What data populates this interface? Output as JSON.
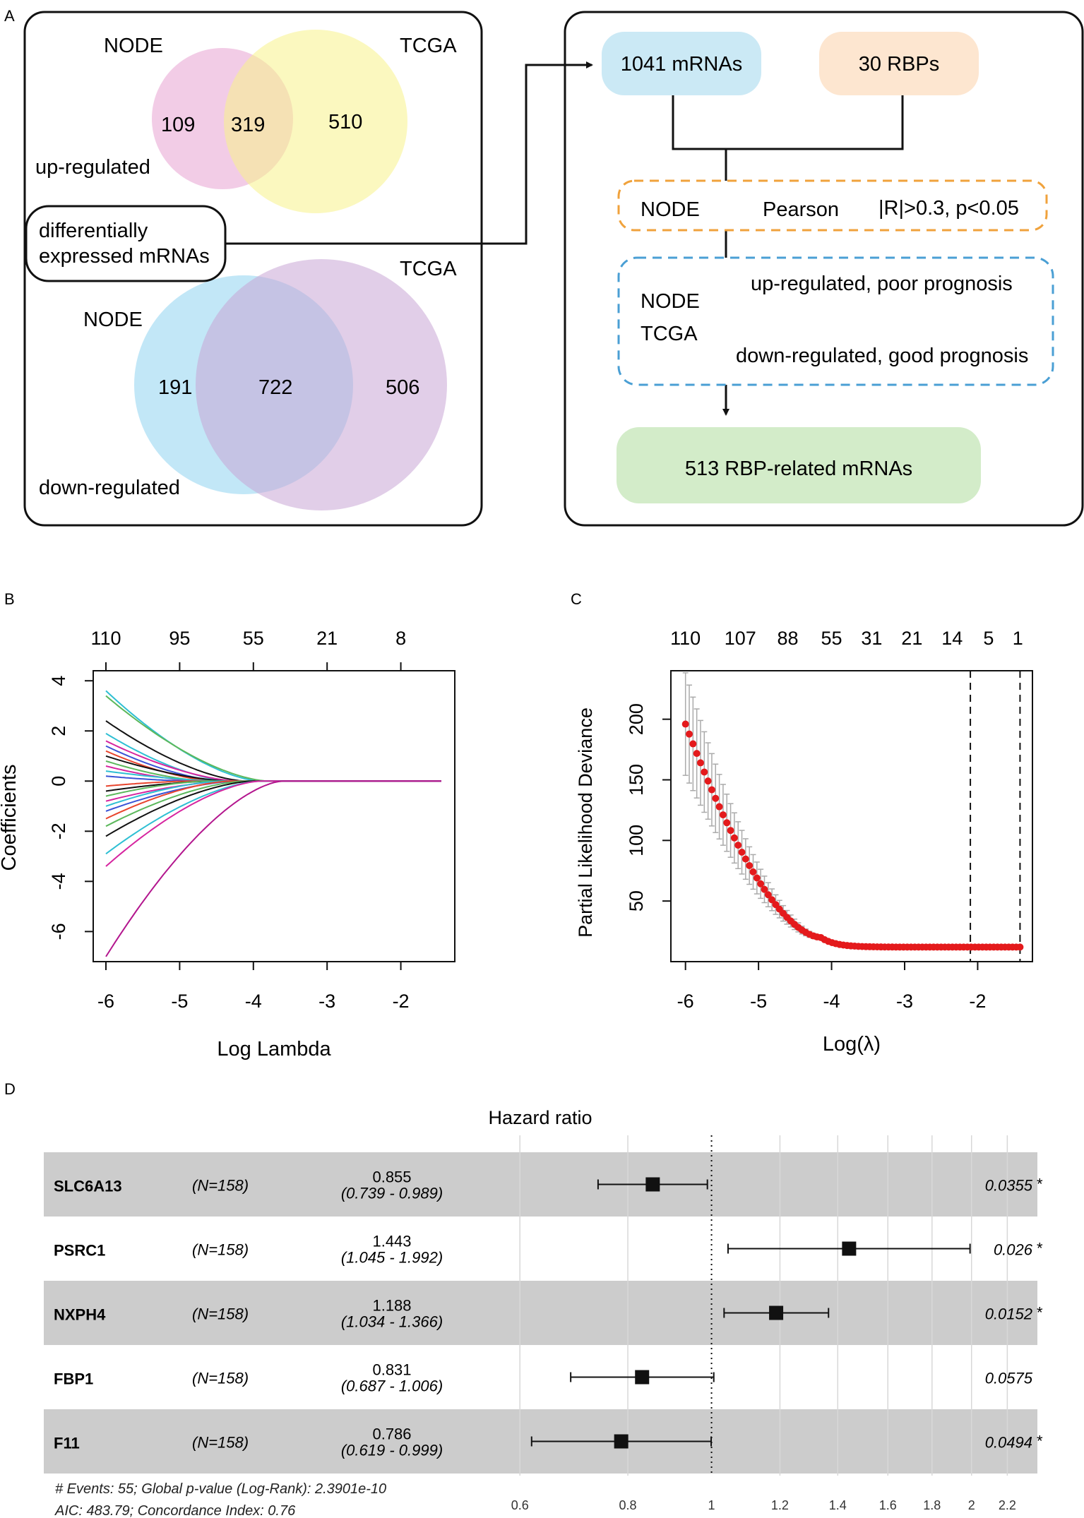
{
  "panel_letters": [
    "A",
    "B",
    "C",
    "D"
  ],
  "panel_a": {
    "up": {
      "left_label": "NODE",
      "right_label": "TCGA",
      "left_only": "109",
      "overlap": "319",
      "right_only": "510",
      "direction": "up-regulated",
      "colors": {
        "left": "#e8a3d1",
        "right": "#f7f28a"
      }
    },
    "callout": {
      "line1": "differentially",
      "line2": "expressed mRNAs"
    },
    "down": {
      "left_label": "NODE",
      "right_label": "TCGA",
      "left_only": "191",
      "overlap": "722",
      "right_only": "506",
      "direction": "down-regulated",
      "colors": {
        "left": "#8fd3f0",
        "right": "#c9a6d6"
      }
    },
    "flow": {
      "mrnas_box": "1041 mRNAs",
      "rbps_box": "30 RBPs",
      "pearson_row": {
        "cohort": "NODE",
        "method": "Pearson",
        "criteria": "|R|>0.3, p<0.05"
      },
      "prognosis_box": {
        "cohort1": "NODE",
        "cohort2": "TCGA",
        "rule1": "up-regulated, poor prognosis",
        "rule2": "down-regulated, good prognosis"
      },
      "result_box": "513 RBP-related mRNAs",
      "colors": {
        "mrnas": "#cbe9f5",
        "rbps": "#fde6d0",
        "result": "#d3ecc9",
        "pearson_border": "#f0a23c",
        "prognosis_border": "#4a9fd4"
      }
    }
  },
  "chart_data": [
    {
      "id": "B",
      "type": "line",
      "title": "",
      "xlabel": "Log Lambda",
      "ylabel": "Coefficients",
      "xlim": [
        -6.0,
        -1.45
      ],
      "ylim": [
        -7.2,
        4.4
      ],
      "x_ticks": [
        -6,
        -5,
        -4,
        -3,
        -2
      ],
      "y_ticks": [
        4,
        2,
        0,
        -2,
        -4,
        -6
      ],
      "top_axis": {
        "positions": [
          -6,
          -5,
          -4,
          -3,
          -2
        ],
        "labels": [
          "110",
          "95",
          "55",
          "21",
          "8"
        ]
      },
      "x_end": -1.45,
      "series": [
        {
          "name": "c1",
          "start": 3.6,
          "zero_at": -3.9,
          "color": "#2ebfd3"
        },
        {
          "name": "c2",
          "start": 3.4,
          "zero_at": -3.8,
          "color": "#5cb85c"
        },
        {
          "name": "c3",
          "start": 2.4,
          "zero_at": -4.1,
          "color": "#111111"
        },
        {
          "name": "c4",
          "start": 1.9,
          "zero_at": -4.3,
          "color": "#2ebfd3"
        },
        {
          "name": "c5",
          "start": 1.6,
          "zero_at": -4.2,
          "color": "#d6249f"
        },
        {
          "name": "c6",
          "start": 1.4,
          "zero_at": -4.4,
          "color": "#3a53d6"
        },
        {
          "name": "c7",
          "start": 1.2,
          "zero_at": -4.5,
          "color": "#e8452e"
        },
        {
          "name": "c8",
          "start": 1.0,
          "zero_at": -4.3,
          "color": "#111111"
        },
        {
          "name": "c9",
          "start": 0.8,
          "zero_at": -4.6,
          "color": "#5cb85c"
        },
        {
          "name": "c10",
          "start": 0.6,
          "zero_at": -4.7,
          "color": "#d6249f"
        },
        {
          "name": "c11",
          "start": 0.4,
          "zero_at": -4.4,
          "color": "#2ebfd3"
        },
        {
          "name": "c12",
          "start": 0.2,
          "zero_at": -4.8,
          "color": "#3a53d6"
        },
        {
          "name": "c13",
          "start": -0.2,
          "zero_at": -4.8,
          "color": "#e8452e"
        },
        {
          "name": "c14",
          "start": -0.4,
          "zero_at": -4.5,
          "color": "#111111"
        },
        {
          "name": "c15",
          "start": -0.6,
          "zero_at": -4.6,
          "color": "#5cb85c"
        },
        {
          "name": "c16",
          "start": -0.8,
          "zero_at": -4.3,
          "color": "#d6249f"
        },
        {
          "name": "c17",
          "start": -1.0,
          "zero_at": -4.4,
          "color": "#2ebfd3"
        },
        {
          "name": "c18",
          "start": -1.2,
          "zero_at": -4.2,
          "color": "#3a53d6"
        },
        {
          "name": "c19",
          "start": -1.5,
          "zero_at": -4.3,
          "color": "#e8452e"
        },
        {
          "name": "c20",
          "start": -1.8,
          "zero_at": -4.1,
          "color": "#5cb85c"
        },
        {
          "name": "c21",
          "start": -2.2,
          "zero_at": -4.0,
          "color": "#111111"
        },
        {
          "name": "c22",
          "start": -2.9,
          "zero_at": -3.9,
          "color": "#2ebfd3"
        },
        {
          "name": "c23",
          "start": -3.4,
          "zero_at": -3.9,
          "color": "#d6249f"
        },
        {
          "name": "c24",
          "start": -7.0,
          "zero_at": -3.6,
          "color": "#b3168e"
        }
      ]
    },
    {
      "id": "C",
      "type": "scatter",
      "title": "",
      "xlabel": "Log(λ)",
      "ylabel": "Partial Likelihood Deviance",
      "xlim": [
        -6.2,
        -1.25
      ],
      "ylim": [
        0,
        240
      ],
      "x_ticks": [
        -6,
        -5,
        -4,
        -3,
        -2
      ],
      "y_ticks": [
        50,
        100,
        150,
        200
      ],
      "top_axis": {
        "positions": [
          -6,
          -5.25,
          -4.6,
          -4.0,
          -3.45,
          -2.9,
          -2.35,
          -1.85,
          -1.45
        ],
        "labels": [
          "110",
          "107",
          "88",
          "55",
          "31",
          "21",
          "14",
          "5",
          "1"
        ]
      },
      "vlines": [
        -2.1,
        -1.42
      ],
      "points": {
        "x_start": -6.0,
        "x_end": -1.42,
        "count": 90,
        "start": 196,
        "plateau": 12,
        "knee": -4.15
      },
      "point_color": "#e41a1c",
      "errorbar_color": "#aaaaaa"
    },
    {
      "id": "D",
      "type": "forest",
      "title": "Hazard ratio",
      "x_scale": "log",
      "x_ticks": [
        0.6,
        0.8,
        1,
        1.2,
        1.4,
        1.6,
        1.8,
        2,
        2.2
      ],
      "x_tick_labels": [
        "0.6",
        "0.8",
        "1",
        "1.2",
        "1.4",
        "1.6",
        "1.8",
        "2",
        "2.2"
      ],
      "xlim": [
        0.55,
        2.3
      ],
      "reference": 1,
      "rows": [
        {
          "gene": "SLC6A13",
          "n": "(N=158)",
          "hr": 0.855,
          "lo": 0.739,
          "hi": 0.989,
          "hr_text": "0.855",
          "ci_text": "(0.739 - 0.989)",
          "p_text": "0.0355",
          "star": "*"
        },
        {
          "gene": "PSRC1",
          "n": "(N=158)",
          "hr": 1.443,
          "lo": 1.045,
          "hi": 1.992,
          "hr_text": "1.443",
          "ci_text": "(1.045 - 1.992)",
          "p_text": "0.026",
          "star": "*"
        },
        {
          "gene": "NXPH4",
          "n": "(N=158)",
          "hr": 1.188,
          "lo": 1.034,
          "hi": 1.366,
          "hr_text": "1.188",
          "ci_text": "(1.034 - 1.366)",
          "p_text": "0.0152",
          "star": "*"
        },
        {
          "gene": "FBP1",
          "n": "(N=158)",
          "hr": 0.831,
          "lo": 0.687,
          "hi": 1.006,
          "hr_text": "0.831",
          "ci_text": "(0.687 - 1.006)",
          "p_text": "0.0575",
          "star": ""
        },
        {
          "gene": "F11",
          "n": "(N=158)",
          "hr": 0.786,
          "lo": 0.619,
          "hi": 0.999,
          "hr_text": "0.786",
          "ci_text": "(0.619 - 0.999)",
          "p_text": "0.0494",
          "star": "*"
        }
      ],
      "footnote1": "# Events: 55; Global p-value (Log-Rank): 2.3901e-10",
      "footnote2": "AIC: 483.79; Concordance Index: 0.76"
    }
  ]
}
